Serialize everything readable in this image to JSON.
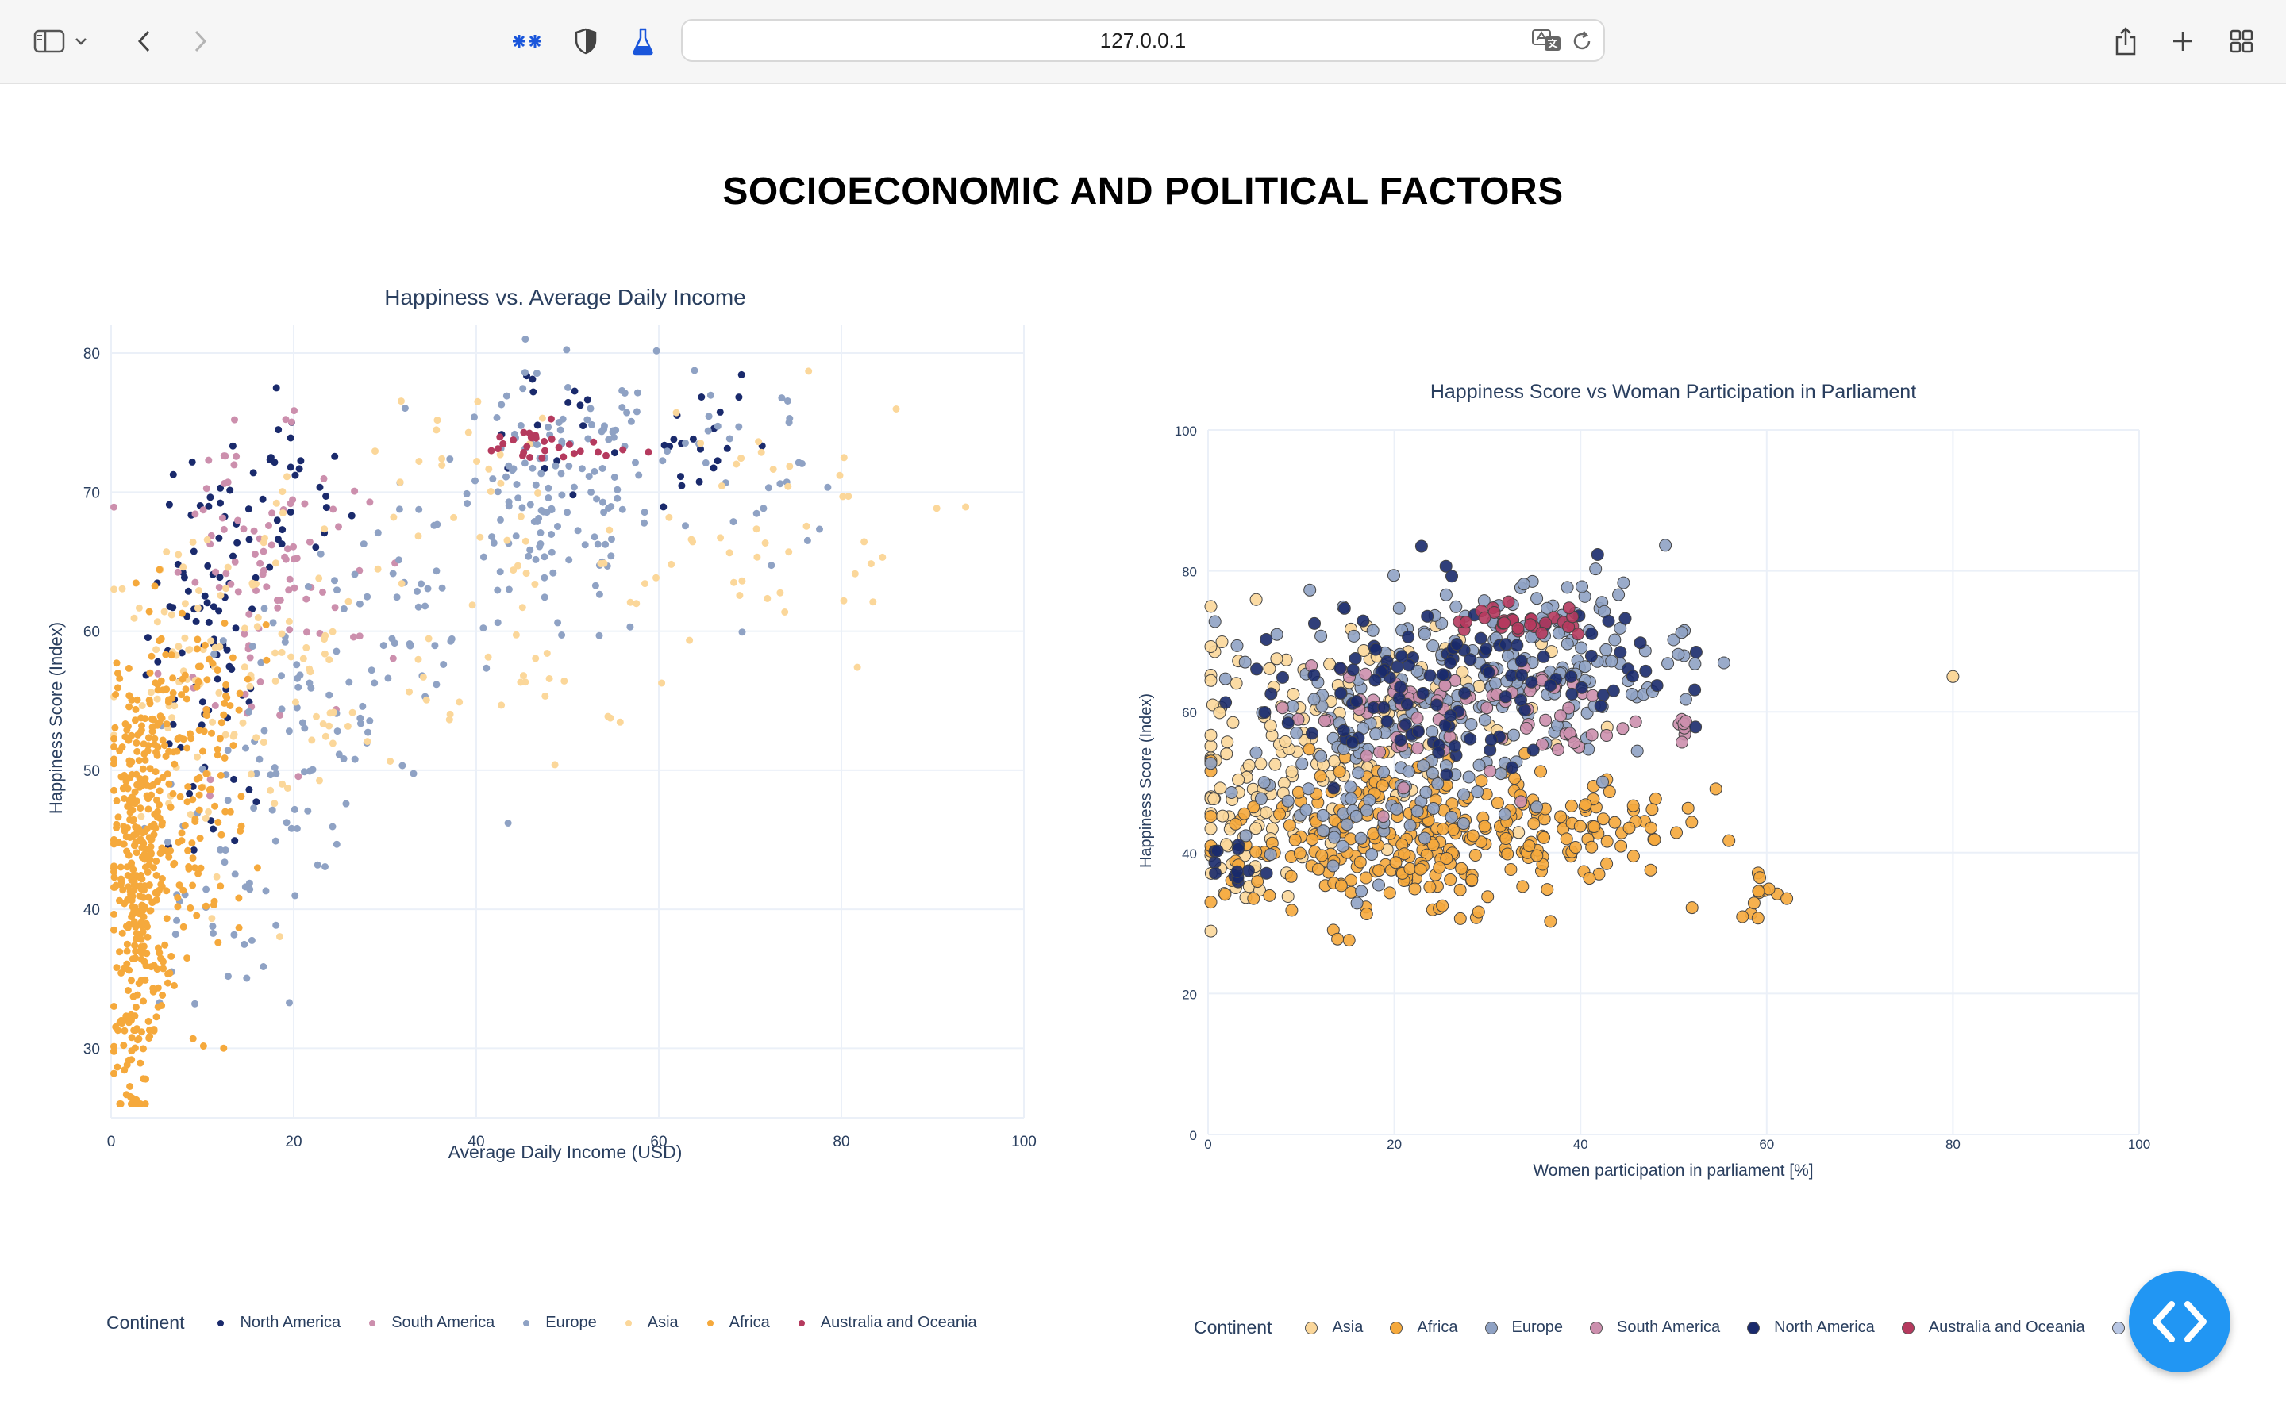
{
  "browser": {
    "url": "127.0.0.1"
  },
  "page": {
    "title": "SOCIOECONOMIC AND POLITICAL FACTORS"
  },
  "colors": {
    "north_america": "#1a2a6c",
    "south_america": "#cc8fad",
    "europe": "#8fa2c4",
    "asia": "#fbd79a",
    "africa": "#f5a93c",
    "australia_oceania": "#b53a5e",
    "europe_asia": "#b9c7e4",
    "fab": "#2196f3"
  },
  "icons": [
    "sidebar-icon",
    "chevron-down-icon",
    "back-icon",
    "forward-icon",
    "extension-icon",
    "shield-icon",
    "flask-icon",
    "translate-icon",
    "reload-icon",
    "share-icon",
    "plus-icon",
    "tabs-grid-icon",
    "code-icon"
  ],
  "chart_data": [
    {
      "type": "scatter",
      "title": "Happiness vs. Average Daily Income",
      "xlabel": "Average Daily Income (USD)",
      "ylabel": "Happiness Score (Index)",
      "xlim": [
        0,
        100
      ],
      "ylim": [
        25,
        82
      ],
      "xticks": [
        "0",
        "20",
        "40",
        "60",
        "80",
        "100"
      ],
      "yticks": [
        "30",
        "40",
        "50",
        "60",
        "70",
        "80"
      ],
      "grid": true,
      "legend_title": "Continent",
      "legend_position": "bottom",
      "series": [
        {
          "name": "North America",
          "key": "north_america",
          "clusters": [
            [
              10,
              60,
              3,
              6,
              40
            ],
            [
              13,
              65,
              3,
              5,
              30
            ],
            [
              20,
              70,
              3,
              3,
              20
            ],
            [
              12,
              52,
              3,
              5,
              20
            ],
            [
              60,
              74,
              6,
              3,
              25
            ],
            [
              47,
              75,
              4,
              3,
              10
            ]
          ]
        },
        {
          "name": "South America",
          "key": "south_america",
          "clusters": [
            [
              16,
              62,
              5,
              6,
              50
            ],
            [
              20,
              66,
              4,
              4,
              30
            ],
            [
              13,
              70,
              3,
              3,
              15
            ]
          ]
        },
        {
          "name": "Europe",
          "key": "europe",
          "clusters": [
            [
              20,
              52,
              5,
              5,
              60
            ],
            [
              30,
              59,
              6,
              5,
              50
            ],
            [
              48,
              68,
              6,
              5,
              100
            ],
            [
              55,
              73,
              8,
              3,
              60
            ],
            [
              72,
              72,
              5,
              3,
              20
            ],
            [
              10,
              40,
              4,
              4,
              30
            ]
          ]
        },
        {
          "name": "Asia",
          "key": "asia",
          "clusters": [
            [
              8,
              55,
              5,
              7,
              60
            ],
            [
              20,
              58,
              8,
              7,
              60
            ],
            [
              45,
              62,
              10,
              6,
              50
            ],
            [
              70,
              67,
              10,
              5,
              40
            ],
            [
              38,
              72,
              5,
              3,
              20
            ]
          ]
        },
        {
          "name": "Africa",
          "key": "africa",
          "clusters": [
            [
              3,
              42,
              1.5,
              7,
              300
            ],
            [
              6,
              50,
              3,
              6,
              120
            ],
            [
              9,
              45,
              3,
              6,
              60
            ],
            [
              2,
              30,
              0.8,
              3,
              30
            ],
            [
              12,
              55,
              3,
              3,
              20
            ]
          ]
        },
        {
          "name": "Australia and Oceania",
          "key": "australia_oceania",
          "clusters": [
            [
              47,
              73.2,
              4,
              0.8,
              30
            ]
          ]
        }
      ]
    },
    {
      "type": "scatter",
      "title": "Happiness Score vs Woman Participation in Parliament",
      "xlabel": "Women participation in parliament [%]",
      "ylabel": "Happiness Score (Index)",
      "xlim": [
        0,
        100
      ],
      "ylim": [
        0,
        100
      ],
      "xticks": [
        "0",
        "20",
        "40",
        "60",
        "80",
        "100"
      ],
      "yticks": [
        "0",
        "20",
        "40",
        "60",
        "80",
        "100"
      ],
      "grid": true,
      "legend_title": "Continent",
      "legend_position": "bottom",
      "series": [
        {
          "name": "Asia",
          "key": "asia",
          "clusters": [
            [
              8,
              55,
              6,
              8,
              100
            ],
            [
              20,
              60,
              8,
              8,
              60
            ],
            [
              3,
              40,
              2,
              6,
              30
            ]
          ]
        },
        {
          "name": "Africa",
          "key": "africa",
          "clusters": [
            [
              18,
              42,
              8,
              6,
              200
            ],
            [
              35,
              43,
              6,
              5,
              80
            ],
            [
              60,
              34,
              1.5,
              2,
              12
            ],
            [
              45,
              45,
              4,
              4,
              30
            ]
          ]
        },
        {
          "name": "Europe",
          "key": "europe",
          "clusters": [
            [
              25,
              62,
              10,
              7,
              150
            ],
            [
              38,
              70,
              7,
              5,
              80
            ],
            [
              15,
              48,
              6,
              6,
              60
            ]
          ]
        },
        {
          "name": "South America",
          "key": "south_america",
          "clusters": [
            [
              20,
              60,
              6,
              5,
              50
            ],
            [
              36,
              60,
              5,
              4,
              30
            ],
            [
              51,
              58,
              0.3,
              1,
              8
            ]
          ]
        },
        {
          "name": "North America",
          "key": "north_america",
          "clusters": [
            [
              20,
              62,
              8,
              6,
              80
            ],
            [
              38,
              68,
              6,
              6,
              40
            ],
            [
              3,
              38,
              1.5,
              2,
              12
            ]
          ]
        },
        {
          "name": "Australia and Oceania",
          "key": "australia_oceania",
          "clusters": [
            [
              33,
              73,
              4,
              1.2,
              30
            ]
          ]
        },
        {
          "name": "Europe, Asia",
          "key": "europe_asia",
          "clusters": []
        }
      ],
      "annotations": [
        {
          "x": 80,
          "y": 65,
          "series": "asia"
        }
      ]
    }
  ]
}
